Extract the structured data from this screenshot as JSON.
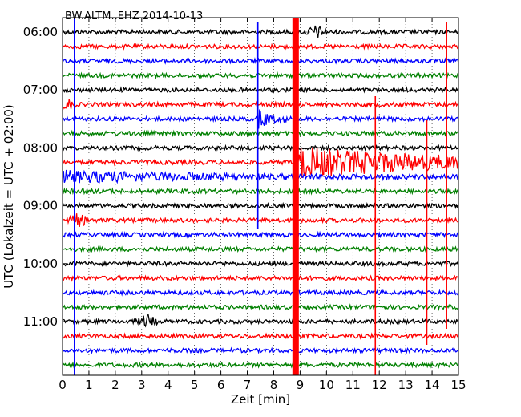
{
  "chart_data": {
    "type": "line",
    "title": "BW.ALTM..EHZ 2014-10-13",
    "xlabel": "Zeit  [min]",
    "ylabel": "UTC (Lokalzeit = UTC + 02:00)",
    "xlim": [
      0,
      15
    ],
    "x_ticks": [
      "0",
      "1",
      "2",
      "3",
      "4",
      "5",
      "6",
      "7",
      "8",
      "9",
      "10",
      "11",
      "12",
      "13",
      "14",
      "15"
    ],
    "y_ticks": [
      "06:00",
      "07:00",
      "08:00",
      "09:00",
      "10:00",
      "11:00"
    ],
    "grid": true,
    "trace_colors": [
      "#000000",
      "#ff0000",
      "#0000ff",
      "#008000"
    ],
    "traces_per_hour": 4,
    "trace_start_times": [
      "06:00",
      "06:15",
      "06:30",
      "06:45",
      "07:00",
      "07:15",
      "07:30",
      "07:45",
      "08:00",
      "08:15",
      "08:30",
      "08:45",
      "09:00",
      "09:15",
      "09:30",
      "09:45",
      "10:00",
      "10:15",
      "10:30",
      "10:45",
      "11:00",
      "11:15",
      "11:30",
      "11:45"
    ],
    "events": [
      {
        "trace": "06:00",
        "minute": 9.6,
        "type": "burst",
        "note": "local event"
      },
      {
        "trace": "07:15",
        "minute": 0.1,
        "type": "burst"
      },
      {
        "trace": "07:30",
        "minute": 7.4,
        "type": "earthquake"
      },
      {
        "trace": "08:15",
        "minute": 8.8,
        "type": "large earthquake with long coda"
      },
      {
        "trace": "09:15",
        "minute": 0.6,
        "type": "burst"
      },
      {
        "trace": "11:00",
        "minute": 3.2,
        "type": "burst"
      }
    ],
    "spikes_minutes": [
      0.45,
      7.4,
      8.85,
      11.85,
      13.8,
      14.55
    ]
  }
}
